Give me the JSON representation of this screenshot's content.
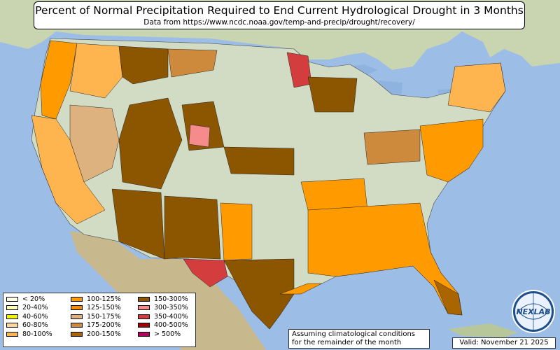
{
  "title": "Percent of Normal Precipitation Required to End Current Hydrological Drought in 3 Months",
  "subtitle": "Data from https://www.ncdc.noaa.gov/temp-and-precip/drought/recovery/",
  "legend": [
    {
      "label": "< 20%",
      "color": "#ffffe6"
    },
    {
      "label": "20-40%",
      "color": "#ffffb3"
    },
    {
      "label": "40-60%",
      "color": "#f3f300"
    },
    {
      "label": "60-80%",
      "color": "#ffd69a"
    },
    {
      "label": "80-100%",
      "color": "#ffb54f"
    },
    {
      "label": "100-125%",
      "color": "#ff9b00"
    },
    {
      "label": "125-150%",
      "color": "#f48c00"
    },
    {
      "label": "150-175%",
      "color": "#ddb27e"
    },
    {
      "label": "175-200%",
      "color": "#cd8a3d"
    },
    {
      "label": "200-150%",
      "color": "#a96600"
    },
    {
      "label": "150-300%",
      "color": "#8c5500"
    },
    {
      "label": "300-350%",
      "color": "#f58b8b"
    },
    {
      "label": "350-400%",
      "color": "#d43d3d"
    },
    {
      "label": "400-500%",
      "color": "#a00000"
    },
    {
      "label": "> 500%",
      "color": "#b00060"
    }
  ],
  "note_line1": "Assuming climatological conditions",
  "note_line2": "for the remainder of the month",
  "valid_text": "Valid: November 21 2025",
  "logo_text": "NEXLAB",
  "colors": {
    "ocean": "#9cbde6",
    "land": "#d7dfc4",
    "terrain": "#c7b48e",
    "us_base": "#d2dcc5"
  }
}
